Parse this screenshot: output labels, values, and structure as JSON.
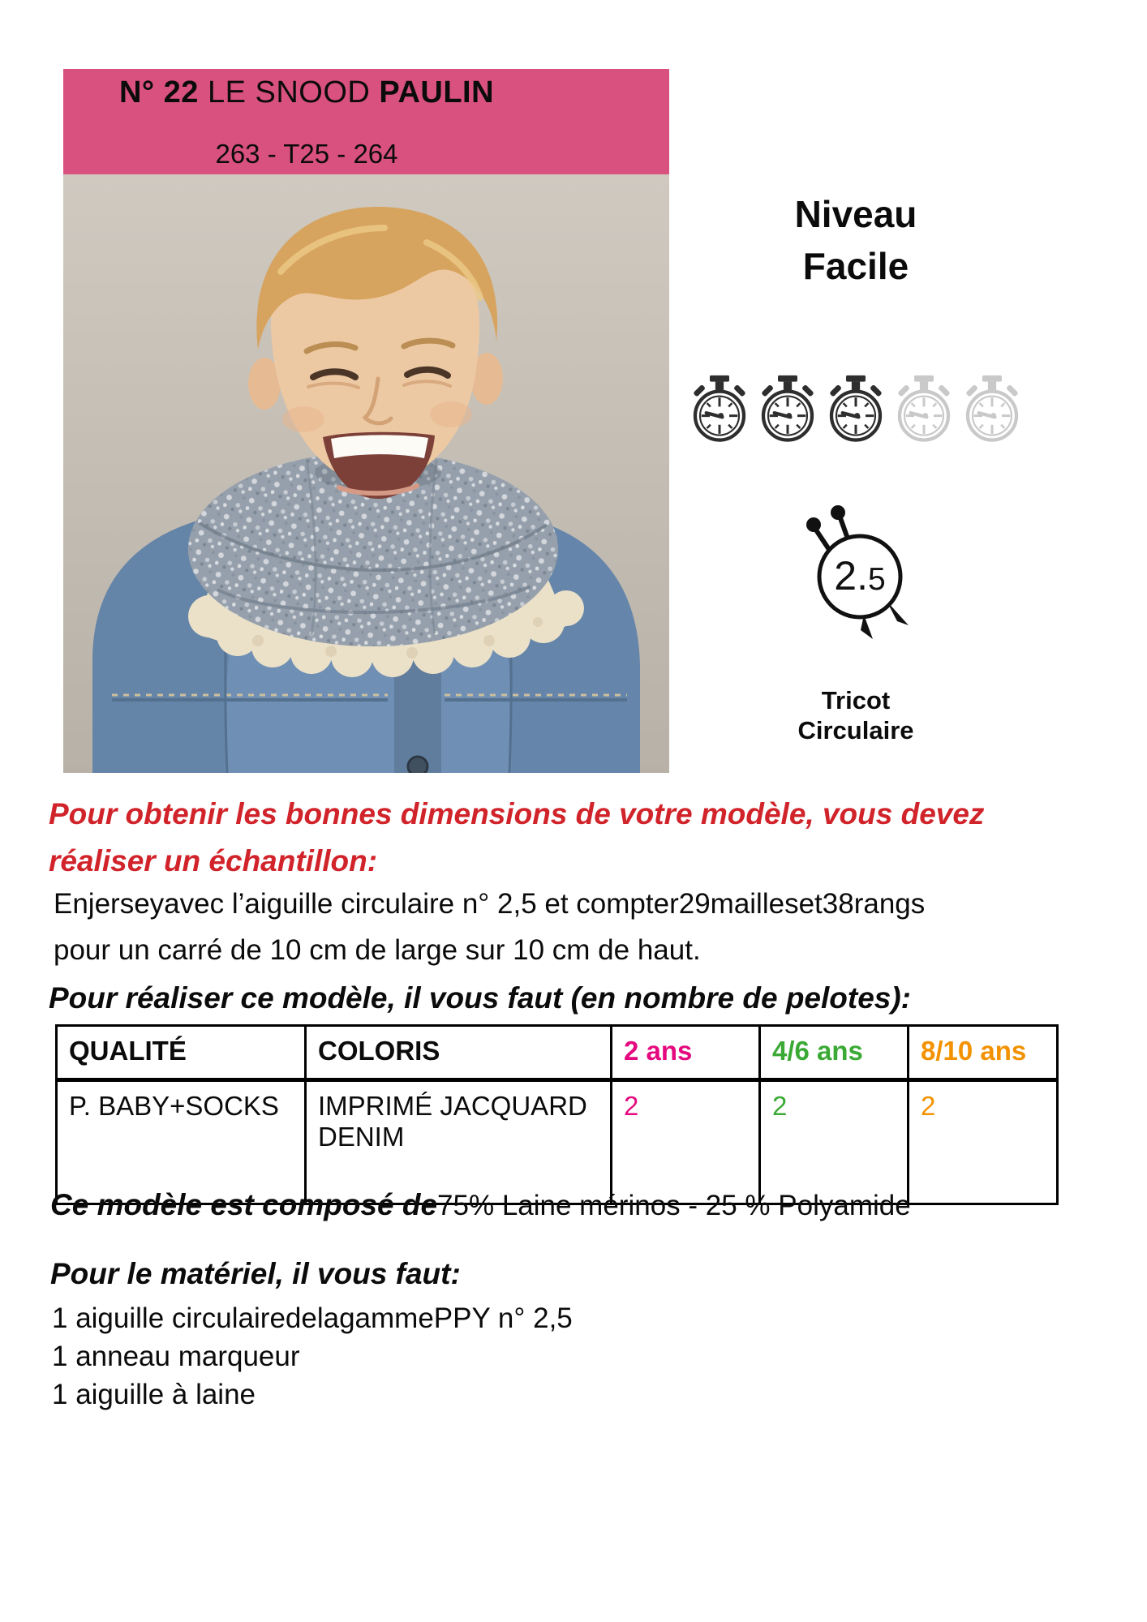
{
  "colors": {
    "banner_bg": "#d9517f",
    "heading_red": "#d1232a",
    "age_2ans": "#e5097f",
    "age_46ans": "#3baa35",
    "age_810ans": "#f39200",
    "watch_dark": "#2e2e2e",
    "watch_faded": "#c9c9c9"
  },
  "banner": {
    "title_bold1": "N° 22",
    "title_regular": " LE SNOOD ",
    "title_bold2": "PAULIN",
    "subtitle": "263 - T25 - 264"
  },
  "photo": {
    "description": "Smiling blond boy wearing a grey marled snood and a denim jacket with sherpa collar"
  },
  "level": {
    "line1": "Niveau",
    "line2": "Facile",
    "filled_watches": 3,
    "total_watches": 5
  },
  "needle": {
    "size_main": "2.",
    "size_small": "5"
  },
  "technique": {
    "line1": "Tricot",
    "line2": "Circulaire"
  },
  "gauge": {
    "heading_line1": "Pour obtenir les bonnes dimensions de votre modèle, vous devez",
    "heading_line2": "réaliser un échantillon:",
    "body_line1": "Enjerseyavec l’aiguille circulaire n° 2,5 et compter29mailleset38rangs",
    "body_line2": "pour un carré de 10 cm de large sur 10 cm de haut."
  },
  "materials_table": {
    "heading": "Pour réaliser ce modèle, il vous faut (en nombre de pelotes):",
    "columns": [
      {
        "label": "QUALITÉ"
      },
      {
        "label": "COLORIS"
      },
      {
        "label": "2 ans"
      },
      {
        "label": "4/6 ans"
      },
      {
        "label": "8/10 ans"
      }
    ],
    "row": {
      "quality": "P. BABY+SOCKS",
      "coloris": "IMPRIMÉ JACQUARD DENIM",
      "qty_2ans": "2",
      "qty_46ans": "2",
      "qty_810ans": "2"
    }
  },
  "composition": {
    "label": "Ce modèle est composé de",
    "value": "75% Laine mérinos - 25 % Polyamide"
  },
  "tools": {
    "heading": "Pour le matériel, il vous faut:",
    "items": [
      "1 aiguille circulairedelagammePPY n° 2,5",
      "1 anneau marqueur",
      "1 aiguille à laine"
    ]
  }
}
